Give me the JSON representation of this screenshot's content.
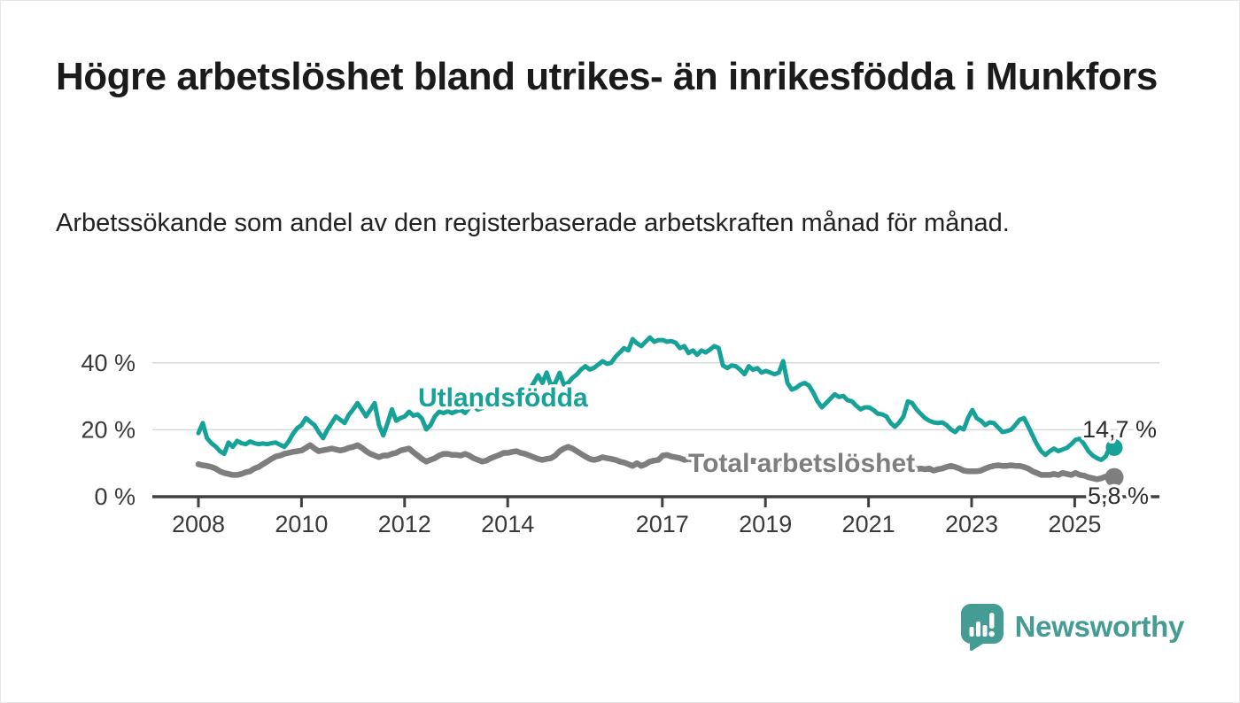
{
  "page": {
    "title": "Högre arbetslöshet bland utrikes- än inrikesfödda i Munkfors",
    "subtitle": "Arbetssökande som andel av den registerbaserade arbetskraften månad för månad."
  },
  "brand": {
    "name": "Newsworthy",
    "color": "#459c94",
    "icon": "bar-chart-speech-bubble-icon"
  },
  "chart_data": {
    "type": "line",
    "title": "Högre arbetslöshet bland utrikes- än inrikesfödda i Munkfors",
    "subtitle": "Arbetssökande som andel av den registerbaserade arbetskraften månad för månad.",
    "x_unit": "month",
    "x_start": "2008-01",
    "x_end": "2025-10",
    "grid": "horizontal",
    "legend_position": "inline-labels",
    "y_axis": {
      "tick_labels": [
        "0 %",
        "20 %",
        "40 %"
      ],
      "tick_values": [
        0,
        20,
        40
      ],
      "range": [
        0,
        48
      ]
    },
    "x_axis": {
      "tick_labels": [
        "2008",
        "2010",
        "2012",
        "2014",
        "2017",
        "2019",
        "2021",
        "2023",
        "2025"
      ],
      "tick_years": [
        2008,
        2010,
        2012,
        2014,
        2017,
        2019,
        2021,
        2023,
        2025
      ]
    },
    "series": [
      {
        "name": "Utlandsfödda",
        "color": "#16a298",
        "end_label": "14,7 %",
        "end_value": 14.7,
        "values": [
          19.0,
          22.0,
          17.5,
          16.0,
          15.0,
          13.6,
          12.8,
          16.2,
          14.9,
          16.7,
          16.0,
          15.7,
          16.5,
          16.0,
          15.7,
          15.9,
          15.7,
          16.0,
          16.2,
          15.5,
          14.9,
          16.5,
          18.8,
          20.5,
          21.4,
          23.5,
          22.4,
          21.4,
          19.3,
          17.5,
          20.0,
          22.0,
          24.0,
          23.0,
          22.0,
          24.5,
          26.1,
          28.0,
          26.0,
          24.0,
          26.0,
          28.0,
          21.4,
          18.3,
          22.0,
          26.1,
          22.7,
          23.5,
          24.0,
          25.4,
          24.2,
          24.6,
          23.3,
          20.1,
          21.4,
          24.0,
          25.4,
          25.0,
          25.5,
          25.0,
          25.5,
          26.0,
          25.0,
          26.5,
          27.0,
          26.0,
          26.5,
          27.5,
          27.0,
          28.0,
          27.5,
          28.5,
          29.0,
          30.0,
          29.5,
          31.0,
          30.5,
          32.0,
          34.0,
          36.3,
          34.0,
          37.1,
          33.2,
          34.0,
          37.0,
          33.5,
          34.0,
          35.5,
          36.5,
          38.0,
          39.0,
          38.0,
          38.5,
          39.5,
          40.5,
          39.7,
          40.0,
          41.8,
          43.1,
          44.4,
          43.7,
          47.1,
          45.8,
          45.0,
          46.3,
          47.6,
          46.3,
          46.8,
          46.8,
          46.3,
          46.5,
          46.0,
          44.4,
          45.0,
          42.9,
          43.7,
          42.4,
          43.7,
          43.1,
          44.0,
          45.0,
          44.4,
          39.2,
          38.4,
          39.2,
          39.0,
          37.9,
          36.6,
          39.0,
          37.9,
          38.4,
          37.1,
          37.6,
          37.1,
          36.6,
          37.1,
          40.5,
          34.0,
          32.0,
          32.5,
          33.5,
          34.0,
          33.2,
          31.1,
          28.5,
          26.7,
          28.0,
          29.3,
          30.6,
          29.8,
          30.1,
          28.8,
          28.5,
          27.2,
          26.1,
          26.7,
          26.7,
          25.9,
          24.8,
          24.6,
          24.0,
          22.0,
          20.9,
          22.2,
          24.0,
          28.5,
          28.0,
          26.1,
          24.8,
          23.5,
          22.7,
          22.2,
          22.0,
          22.2,
          21.4,
          20.1,
          19.3,
          20.7,
          20.1,
          23.5,
          25.9,
          23.5,
          22.7,
          21.4,
          22.2,
          22.0,
          20.7,
          19.3,
          19.6,
          20.0,
          21.4,
          23.0,
          23.5,
          21.0,
          18.3,
          15.7,
          13.6,
          12.5,
          13.6,
          14.4,
          13.6,
          14.1,
          14.6,
          15.7,
          17.0,
          17.3,
          15.7,
          13.6,
          12.3,
          11.5,
          11.0,
          12.0,
          14.9,
          14.7
        ]
      },
      {
        "name": "Total arbetslöshet",
        "color": "#7e7e7e",
        "end_label": "5,8 %",
        "end_value": 5.8,
        "values": [
          9.7,
          9.4,
          9.2,
          8.9,
          8.4,
          7.6,
          7.1,
          6.8,
          6.5,
          6.5,
          6.8,
          7.3,
          7.6,
          8.4,
          8.9,
          9.7,
          10.5,
          11.3,
          12.0,
          12.3,
          12.8,
          13.1,
          13.4,
          13.6,
          13.8,
          14.6,
          15.4,
          14.4,
          13.6,
          13.9,
          14.1,
          14.4,
          14.1,
          13.8,
          14.1,
          14.6,
          14.9,
          15.4,
          14.6,
          13.6,
          12.8,
          12.3,
          11.8,
          12.3,
          12.3,
          12.8,
          13.1,
          13.8,
          14.1,
          14.4,
          13.3,
          12.3,
          11.3,
          10.5,
          11.0,
          11.5,
          12.3,
          12.8,
          12.8,
          12.5,
          12.5,
          12.3,
          12.8,
          12.3,
          11.5,
          11.0,
          10.5,
          10.8,
          11.5,
          12.0,
          12.5,
          13.1,
          13.1,
          13.4,
          13.6,
          13.1,
          12.8,
          12.3,
          11.8,
          11.3,
          11.0,
          11.3,
          11.5,
          12.3,
          13.6,
          14.4,
          14.9,
          14.4,
          13.6,
          12.8,
          12.0,
          11.3,
          11.0,
          11.3,
          11.8,
          11.5,
          11.3,
          11.0,
          10.5,
          10.2,
          9.7,
          9.2,
          10.0,
          9.2,
          9.7,
          10.5,
          10.8,
          11.0,
          12.3,
          12.5,
          12.0,
          11.8,
          11.5,
          11.0,
          11.3,
          11.0,
          10.8,
          11.0,
          11.3,
          11.5,
          11.3,
          11.0,
          10.8,
          10.5,
          10.8,
          11.0,
          10.5,
          10.2,
          10.5,
          10.8,
          10.5,
          10.2,
          10.0,
          9.7,
          9.4,
          9.7,
          10.0,
          9.7,
          9.4,
          9.2,
          9.4,
          9.7,
          9.4,
          9.2,
          9.4,
          9.7,
          10.2,
          10.8,
          11.0,
          10.8,
          10.5,
          10.2,
          10.0,
          9.7,
          9.4,
          9.2,
          9.4,
          9.2,
          8.9,
          8.7,
          8.4,
          8.2,
          8.4,
          8.2,
          8.4,
          8.7,
          8.4,
          8.2,
          8.4,
          8.2,
          8.4,
          7.8,
          8.2,
          8.4,
          8.9,
          9.2,
          8.9,
          8.4,
          7.8,
          7.6,
          7.6,
          7.6,
          7.8,
          8.4,
          8.9,
          9.2,
          9.4,
          9.2,
          9.2,
          9.4,
          9.2,
          9.2,
          8.9,
          8.4,
          7.6,
          7.1,
          6.5,
          6.5,
          6.5,
          6.8,
          6.5,
          7.1,
          6.8,
          6.5,
          7.1,
          6.5,
          6.3,
          5.8,
          5.5,
          5.2,
          5.5,
          6.0,
          6.3,
          5.8
        ]
      }
    ]
  }
}
